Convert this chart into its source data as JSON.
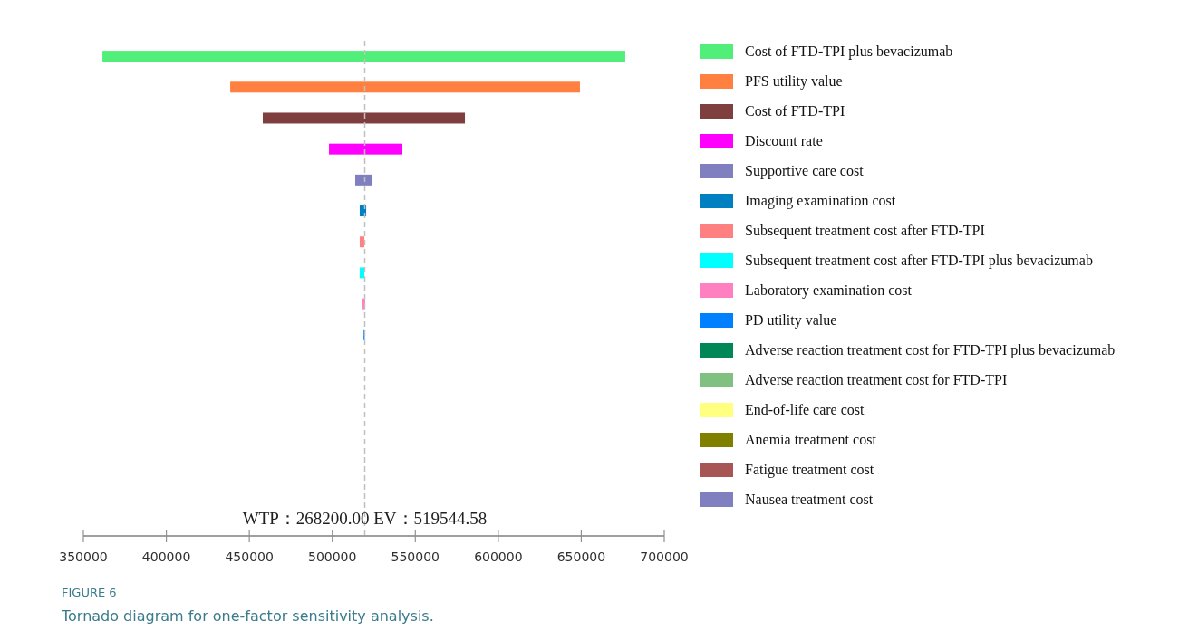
{
  "chart_data": {
    "type": "bar",
    "orientation": "horizontal",
    "title": "FIGURE 6",
    "subtitle": "Tornado diagram for one-factor sensitivity analysis.",
    "categories": [
      null,
      null,
      null,
      null,
      null,
      null,
      null,
      null,
      null,
      null,
      null,
      null,
      null,
      null,
      null,
      null
    ],
    "series": [
      {
        "name": "Cost of  FTD-TPI plus bevacizumab",
        "color": "#52ee7a",
        "base": [
          361500,
          null,
          null,
          null,
          null,
          null,
          null,
          null,
          null,
          null,
          null,
          null,
          null,
          null,
          null,
          null
        ],
        "values": [
          315000,
          null,
          null,
          null,
          null,
          null,
          null,
          null,
          null,
          null,
          null,
          null,
          null,
          null,
          null,
          null
        ]
      },
      {
        "name": "PFS utility value",
        "color": "#ff8040",
        "base": [
          null,
          438500,
          null,
          null,
          null,
          null,
          null,
          null,
          null,
          null,
          null,
          null,
          null,
          null,
          null,
          null
        ],
        "values": [
          null,
          210700,
          null,
          null,
          null,
          null,
          null,
          null,
          null,
          null,
          null,
          null,
          null,
          null,
          null,
          null
        ]
      },
      {
        "name": "Cost of FTD-TPI",
        "color": "#7f3f3f",
        "base": [
          null,
          null,
          458100,
          null,
          null,
          null,
          null,
          null,
          null,
          null,
          null,
          null,
          null,
          null,
          null,
          null
        ],
        "values": [
          null,
          null,
          121800,
          null,
          null,
          null,
          null,
          null,
          null,
          null,
          null,
          null,
          null,
          null,
          null,
          null
        ]
      },
      {
        "name": "Discount rate",
        "color": "#ff00ff",
        "base": [
          null,
          null,
          null,
          498000,
          null,
          null,
          null,
          null,
          null,
          null,
          null,
          null,
          null,
          null,
          null,
          null
        ],
        "values": [
          null,
          null,
          null,
          44200,
          null,
          null,
          null,
          null,
          null,
          null,
          null,
          null,
          null,
          null,
          null,
          null
        ]
      },
      {
        "name": "Supportive care cost",
        "color": "#8080c0",
        "base": [
          null,
          null,
          null,
          null,
          513800,
          null,
          null,
          null,
          null,
          null,
          null,
          null,
          null,
          null,
          null,
          null
        ],
        "values": [
          null,
          null,
          null,
          null,
          10400,
          null,
          null,
          null,
          null,
          null,
          null,
          null,
          null,
          null,
          null,
          null
        ]
      },
      {
        "name": "Imaging examination cost",
        "color": "#0080c0",
        "base": [
          null,
          null,
          null,
          null,
          null,
          516500,
          null,
          null,
          null,
          null,
          null,
          null,
          null,
          null,
          null,
          null
        ],
        "values": [
          null,
          null,
          null,
          null,
          null,
          3900,
          null,
          null,
          null,
          null,
          null,
          null,
          null,
          null,
          null,
          null
        ]
      },
      {
        "name": "Subsequent treatment cost after FTD-TPI",
        "color": "#ff8080",
        "base": [
          null,
          null,
          null,
          null,
          null,
          null,
          516500,
          null,
          null,
          null,
          null,
          null,
          null,
          null,
          null,
          null
        ],
        "values": [
          null,
          null,
          null,
          null,
          null,
          null,
          2800,
          null,
          null,
          null,
          null,
          null,
          null,
          null,
          null,
          null
        ]
      },
      {
        "name": "Subsequent treatment cost after FTD-TPI plus bevacizumab",
        "color": "#00ffff",
        "base": [
          null,
          null,
          null,
          null,
          null,
          null,
          null,
          516500,
          null,
          null,
          null,
          null,
          null,
          null,
          null,
          null
        ],
        "values": [
          null,
          null,
          null,
          null,
          null,
          null,
          null,
          2800,
          null,
          null,
          null,
          null,
          null,
          null,
          null,
          null
        ]
      },
      {
        "name": "Laboratory examination cost",
        "color": "#ff80c0",
        "base": [
          null,
          null,
          null,
          null,
          null,
          null,
          null,
          null,
          518200,
          null,
          null,
          null,
          null,
          null,
          null,
          null
        ],
        "values": [
          null,
          null,
          null,
          null,
          null,
          null,
          null,
          null,
          1600,
          null,
          null,
          null,
          null,
          null,
          null,
          null
        ]
      },
      {
        "name": "PD utility value",
        "color": "#0080ff",
        "base": [
          null,
          null,
          null,
          null,
          null,
          null,
          null,
          null,
          null,
          518800,
          null,
          null,
          null,
          null,
          null,
          null
        ],
        "values": [
          null,
          null,
          null,
          null,
          null,
          null,
          null,
          null,
          null,
          700,
          null,
          null,
          null,
          null,
          null,
          null
        ]
      },
      {
        "name": "Adverse reaction treatment cost for FTD-TPI plus bevacizumab",
        "color": "#008757",
        "values": [
          null,
          null,
          null,
          null,
          null,
          null,
          null,
          null,
          null,
          null,
          null,
          null,
          null,
          null,
          null,
          null
        ]
      },
      {
        "name": "Adverse reaction treatment cost for FTD-TPI",
        "color": "#80c080",
        "values": [
          null,
          null,
          null,
          null,
          null,
          null,
          null,
          null,
          null,
          null,
          null,
          null,
          null,
          null,
          null,
          null
        ]
      },
      {
        "name": "End-of-life care cost",
        "color": "#ffff80",
        "values": [
          null,
          null,
          null,
          null,
          null,
          null,
          null,
          null,
          null,
          null,
          null,
          null,
          null,
          null,
          null,
          null
        ]
      },
      {
        "name": "Anemia treatment cost",
        "color": "#808000",
        "values": [
          null,
          null,
          null,
          null,
          null,
          null,
          null,
          null,
          null,
          null,
          null,
          null,
          null,
          null,
          null,
          null
        ]
      },
      {
        "name": "Fatigue treatment cost",
        "color": "#a85555",
        "values": [
          null,
          null,
          null,
          null,
          null,
          null,
          null,
          null,
          null,
          null,
          null,
          null,
          null,
          null,
          null,
          null
        ]
      },
      {
        "name": "Nausea treatment cost",
        "color": "#8080c0",
        "values": [
          null,
          null,
          null,
          null,
          null,
          null,
          null,
          null,
          null,
          null,
          null,
          null,
          null,
          null,
          null,
          null
        ]
      }
    ],
    "xlim": [
      350000,
      700000
    ],
    "xticks": [
      350000,
      400000,
      450000,
      500000,
      550000,
      600000,
      650000,
      700000
    ],
    "tick_labels": "x",
    "legend": "right",
    "ref_lines": [
      {
        "axis": "x",
        "value": 519544.58,
        "color": "#c0c0c0",
        "line_style": "dashed"
      }
    ],
    "annotations": [
      "WTP：268200.00 EV：519544.58"
    ]
  }
}
